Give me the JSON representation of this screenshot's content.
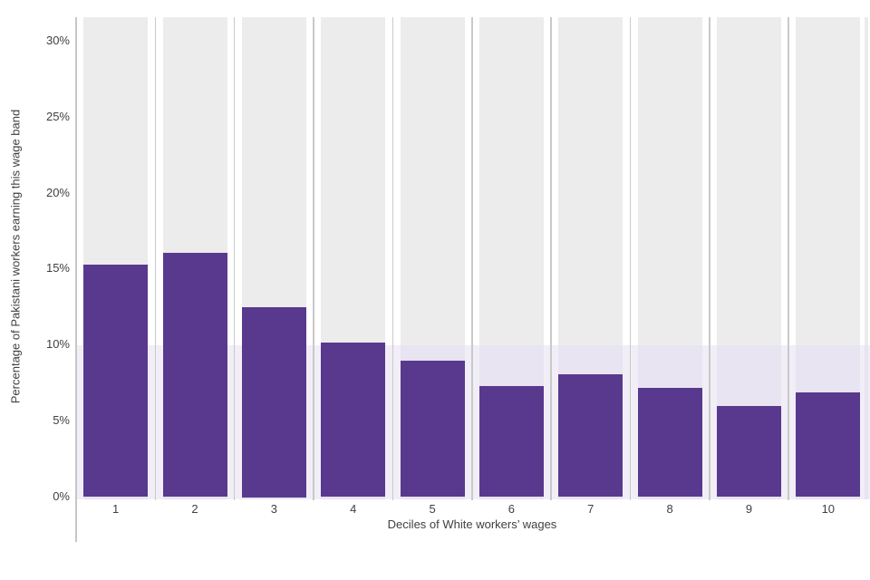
{
  "chart_data": {
    "type": "bar",
    "title": "",
    "categories": [
      "1",
      "2",
      "3",
      "4",
      "5",
      "6",
      "7",
      "8",
      "9",
      "10"
    ],
    "values": [
      15.3,
      16.1,
      12.5,
      10.2,
      9.0,
      7.3,
      8.1,
      7.2,
      6.0,
      6.9
    ],
    "xlabel": "Deciles of White workers’ wages",
    "ylabel": "Percentage of Pakistani workers earning this wage band",
    "ylim": [
      0,
      31.7
    ],
    "yticks": [
      0,
      5,
      10,
      15,
      20,
      25,
      30
    ],
    "ytick_labels": [
      "0%",
      "5%",
      "10%",
      "15%",
      "20%",
      "25%",
      "30%"
    ],
    "grid": "vertical gridlines at category boundaries",
    "legend_position": "none",
    "reference_band": {
      "y_from": 0,
      "y_to": 10
    }
  },
  "colors": {
    "bar": "#58398e",
    "column_bg": "#ececec",
    "band_over_column": "#e8e4f1",
    "band_over_gap": "#f1eef7",
    "gridline": "#c9c9c9",
    "axis_line": "#c6c6c6",
    "text": "#414042",
    "background": "#ffffff"
  }
}
